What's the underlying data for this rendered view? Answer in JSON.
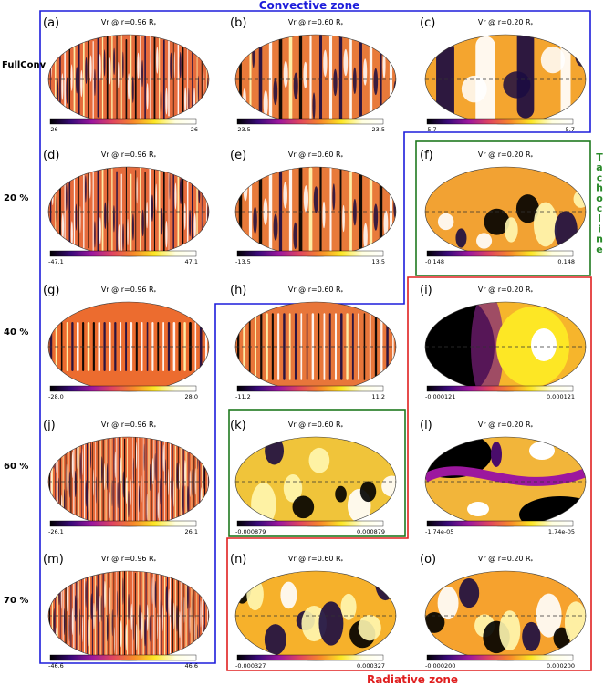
{
  "title_convective": "Convective zone",
  "title_radiative": "Radiative zone",
  "title_tachocline": [
    "T",
    "a",
    "c",
    "h",
    "o",
    "c",
    "l",
    "i",
    "n",
    "e"
  ],
  "row_labels": [
    "FullConv",
    "20 %",
    "40 %",
    "60 %",
    "70 %"
  ],
  "colors": {
    "convective_box": "#1d1ddb",
    "radiative_box": "#e02020",
    "tachocline_box": "#1f7a1f",
    "title_convective": "#1d1ddb",
    "title_radiative": "#e02020",
    "title_tachocline": "#2a8a2a"
  },
  "colormap": [
    "#000000",
    "#3a0a7a",
    "#9c179e",
    "#e0455f",
    "#f88a2a",
    "#fde725",
    "#ffffe0",
    "#ffffff"
  ],
  "panels": [
    {
      "id": "a",
      "letter": "(a)",
      "title": "Vr @ r=0.96 R",
      "min": "-26",
      "max": "26",
      "pattern": "fine"
    },
    {
      "id": "b",
      "letter": "(b)",
      "title": "Vr @ r=0.60 R",
      "min": "-23.5",
      "max": "23.5",
      "pattern": "banana"
    },
    {
      "id": "c",
      "letter": "(c)",
      "title": "Vr @ r=0.20 R",
      "min": "-5.7",
      "max": "5.7",
      "pattern": "broad"
    },
    {
      "id": "d",
      "letter": "(d)",
      "title": "Vr @ r=0.96 R",
      "min": "-47.1",
      "max": "47.1",
      "pattern": "fine"
    },
    {
      "id": "e",
      "letter": "(e)",
      "title": "Vr @ r=0.60 R",
      "min": "-13.5",
      "max": "13.5",
      "pattern": "banana"
    },
    {
      "id": "f",
      "letter": "(f)",
      "title": "Vr @ r=0.20 R",
      "min": "-0.148",
      "max": "0.148",
      "pattern": "blobs"
    },
    {
      "id": "g",
      "letter": "(g)",
      "title": "Vr @ r=0.96 R",
      "min": "-28.0",
      "max": "28.0",
      "pattern": "stripes"
    },
    {
      "id": "h",
      "letter": "(h)",
      "title": "Vr @ r=0.60 R",
      "min": "-11.2",
      "max": "11.2",
      "pattern": "stripesB"
    },
    {
      "id": "i",
      "letter": "(i)",
      "title": "Vr @ r=0.20 R",
      "min": "-0.000121",
      "max": "0.000121",
      "pattern": "dipole"
    },
    {
      "id": "j",
      "letter": "(j)",
      "title": "Vr @ r=0.96 R",
      "min": "-26.1",
      "max": "26.1",
      "pattern": "veryfine"
    },
    {
      "id": "k",
      "letter": "(k)",
      "title": "Vr @ r=0.60 R",
      "min": "-0.000879",
      "max": "0.000879",
      "pattern": "blobs2"
    },
    {
      "id": "l",
      "letter": "(l)",
      "title": "Vr @ r=0.20 R",
      "min": "-1.74e-05",
      "max": "1.74e-05",
      "pattern": "wave"
    },
    {
      "id": "m",
      "letter": "(m)",
      "title": "Vr @ r=0.96 R",
      "min": "-46.6",
      "max": "46.6",
      "pattern": "veryfine"
    },
    {
      "id": "n",
      "letter": "(n)",
      "title": "Vr @ r=0.60 R",
      "min": "-0.000327",
      "max": "0.000327",
      "pattern": "blobs3"
    },
    {
      "id": "o",
      "letter": "(o)",
      "title": "Vr @ r=0.20 R",
      "min": "-0.000200",
      "max": "0.000200",
      "pattern": "blobs4"
    }
  ]
}
